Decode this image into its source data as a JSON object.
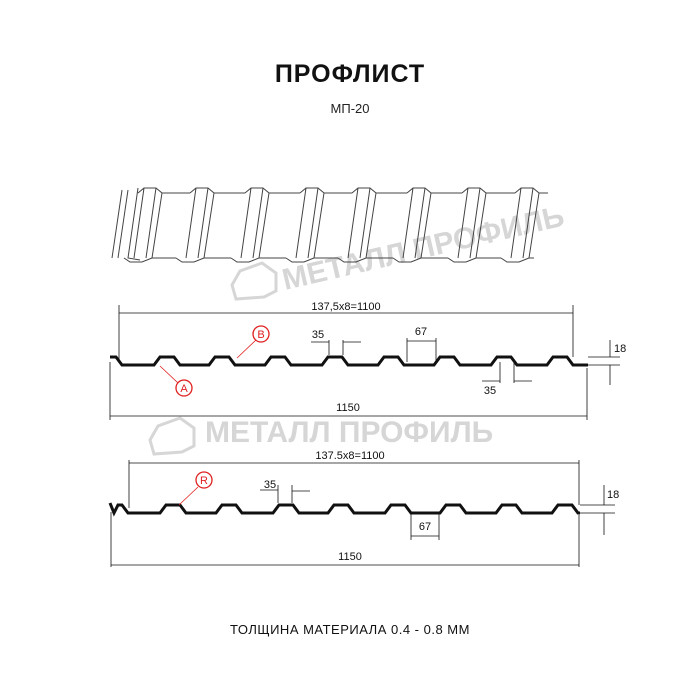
{
  "title": "ПРОФЛИСТ",
  "subtitle": "МП-20",
  "watermark": "МЕТАЛЛ ПРОФИЛЬ",
  "profile_a": {
    "top_dimension": "137,5x8=1100",
    "bottom_dimension": "1150",
    "rib_top": "35",
    "rib_bottom": "35",
    "rib_pitch": "67",
    "height": "18",
    "marker_b": "B",
    "marker_a": "A"
  },
  "profile_r": {
    "top_dimension": "137.5x8=1100",
    "bottom_dimension": "1150",
    "rib_top": "35",
    "rib_pitch": "67",
    "height": "18",
    "marker_r": "R"
  },
  "footer": "ТОЛЩИНА МАТЕРИАЛА 0.4 - 0.8 ММ",
  "colors": {
    "marker": "#e02020",
    "line": "#111111",
    "watermark": "#d0d0d0"
  }
}
